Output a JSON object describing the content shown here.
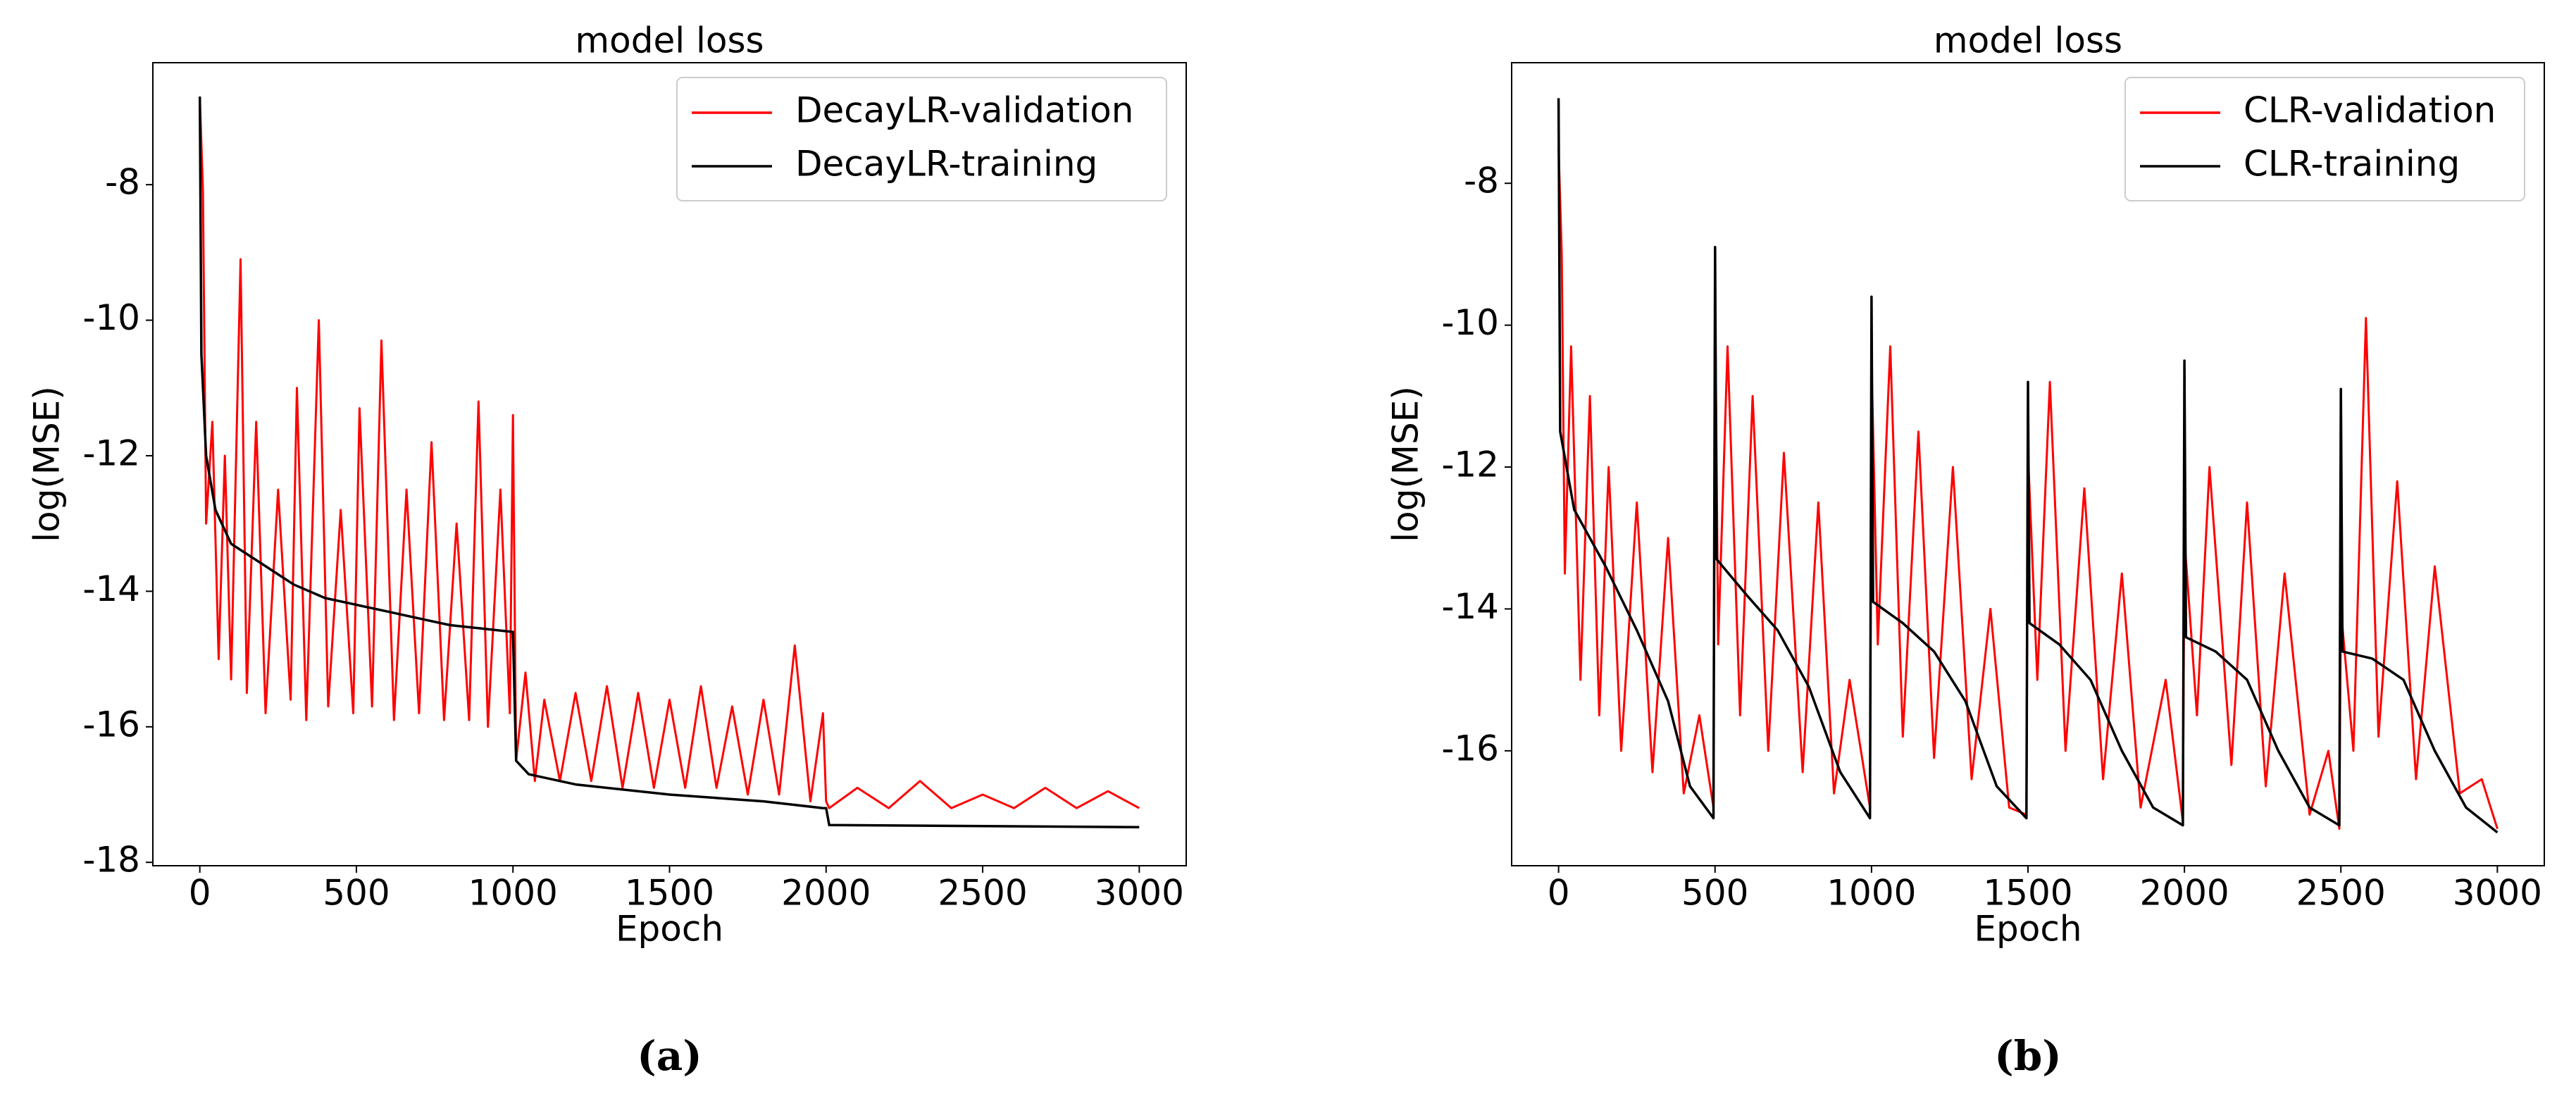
{
  "chart_data": [
    {
      "type": "line",
      "title": "model loss",
      "xlabel": "Epoch",
      "ylabel": "log(MSE)",
      "label": "(a)",
      "xlim": [
        -150,
        3150
      ],
      "ylim": [
        -18.05,
        -6.2
      ],
      "xticks": [
        0,
        500,
        1000,
        1500,
        2000,
        2500,
        3000
      ],
      "yticks": [
        -18,
        -16,
        -14,
        -12,
        -10,
        -8
      ],
      "legend": "upper right",
      "series": [
        {
          "name": "DecayLR-validation",
          "color": "#ff0000",
          "x": [
            0,
            10,
            20,
            40,
            60,
            80,
            100,
            130,
            150,
            180,
            210,
            250,
            290,
            310,
            340,
            380,
            410,
            450,
            490,
            510,
            550,
            580,
            620,
            660,
            700,
            740,
            780,
            820,
            860,
            890,
            920,
            960,
            990,
            1000,
            1010,
            1040,
            1070,
            1100,
            1150,
            1200,
            1250,
            1300,
            1350,
            1400,
            1450,
            1500,
            1550,
            1600,
            1650,
            1700,
            1750,
            1800,
            1850,
            1900,
            1950,
            1990,
            2000,
            2010,
            2100,
            2200,
            2300,
            2400,
            2500,
            2600,
            2700,
            2800,
            2900,
            3000
          ],
          "values": [
            -6.7,
            -8.1,
            -13,
            -11.5,
            -15,
            -12,
            -15.3,
            -9.1,
            -15.5,
            -11.5,
            -15.8,
            -12.5,
            -15.6,
            -11,
            -15.9,
            -10,
            -15.7,
            -12.8,
            -15.8,
            -11.3,
            -15.7,
            -10.3,
            -15.9,
            -12.5,
            -15.8,
            -11.8,
            -15.9,
            -13,
            -15.9,
            -11.2,
            -16,
            -12.5,
            -15.8,
            -11.4,
            -16.5,
            -15.2,
            -16.8,
            -15.6,
            -16.8,
            -15.5,
            -16.8,
            -15.4,
            -16.9,
            -15.5,
            -16.9,
            -15.6,
            -16.9,
            -15.4,
            -16.9,
            -15.7,
            -17,
            -15.6,
            -17,
            -14.8,
            -17.1,
            -15.8,
            -17.1,
            -17.2,
            -16.9,
            -17.2,
            -16.8,
            -17.2,
            -17,
            -17.2,
            -16.9,
            -17.2,
            -16.95,
            -17.2
          ]
        },
        {
          "name": "DecayLR-training",
          "color": "#000000",
          "x": [
            0,
            5,
            20,
            50,
            100,
            200,
            300,
            400,
            500,
            600,
            700,
            800,
            900,
            1000,
            1010,
            1050,
            1200,
            1500,
            1800,
            1990,
            2000,
            2010,
            3000
          ],
          "values": [
            -6.7,
            -10.5,
            -12,
            -12.8,
            -13.3,
            -13.6,
            -13.9,
            -14.1,
            -14.2,
            -14.3,
            -14.4,
            -14.5,
            -14.55,
            -14.6,
            -16.5,
            -16.7,
            -16.85,
            -17,
            -17.1,
            -17.2,
            -17.2,
            -17.45,
            -17.48
          ]
        }
      ]
    },
    {
      "type": "line",
      "title": "model loss",
      "xlabel": "Epoch",
      "ylabel": "log(MSE)",
      "label": "(b)",
      "xlim": [
        -150,
        3150
      ],
      "ylim": [
        -17.62,
        -6.3
      ],
      "xticks": [
        0,
        500,
        1000,
        1500,
        2000,
        2500,
        3000
      ],
      "yticks": [
        -16,
        -14,
        -12,
        -10,
        -8
      ],
      "legend": "upper right",
      "series": [
        {
          "name": "CLR-validation",
          "color": "#ff0000",
          "x": [
            0,
            10,
            20,
            40,
            70,
            100,
            130,
            160,
            200,
            250,
            300,
            350,
            400,
            450,
            495,
            500,
            510,
            540,
            580,
            620,
            670,
            720,
            780,
            830,
            880,
            930,
            995,
            1000,
            1020,
            1060,
            1100,
            1150,
            1200,
            1260,
            1320,
            1380,
            1440,
            1495,
            1500,
            1530,
            1570,
            1620,
            1680,
            1740,
            1800,
            1860,
            1940,
            1995,
            2000,
            2040,
            2080,
            2150,
            2200,
            2260,
            2320,
            2400,
            2460,
            2495,
            2500,
            2540,
            2580,
            2620,
            2680,
            2740,
            2800,
            2880,
            2950,
            3000
          ],
          "values": [
            -7.5,
            -9,
            -13.5,
            -10.3,
            -15,
            -11,
            -15.5,
            -12,
            -16,
            -12.5,
            -16.3,
            -13,
            -16.6,
            -15.5,
            -16.8,
            -9.5,
            -14.5,
            -10.3,
            -15.5,
            -11,
            -16,
            -11.8,
            -16.3,
            -12.5,
            -16.6,
            -15,
            -16.8,
            -10.5,
            -14.5,
            -10.3,
            -15.8,
            -11.5,
            -16.1,
            -12,
            -16.4,
            -14,
            -16.8,
            -16.9,
            -11.8,
            -15,
            -10.8,
            -16,
            -12.3,
            -16.4,
            -13.5,
            -16.8,
            -15,
            -17,
            -13,
            -15.5,
            -12,
            -16.2,
            -12.5,
            -16.5,
            -13.5,
            -16.9,
            -16,
            -17.1,
            -14,
            -16,
            -9.9,
            -15.8,
            -12.2,
            -16.4,
            -13.4,
            -16.6,
            -16.4,
            -17.1
          ]
        },
        {
          "name": "CLR-training",
          "color": "#000000",
          "x": [
            0,
            5,
            50,
            150,
            250,
            350,
            420,
            495,
            500,
            505,
            600,
            700,
            800,
            900,
            995,
            1000,
            1005,
            1100,
            1200,
            1300,
            1400,
            1495,
            1500,
            1505,
            1600,
            1700,
            1800,
            1900,
            1995,
            2000,
            2005,
            2100,
            2200,
            2300,
            2400,
            2495,
            2500,
            2505,
            2600,
            2700,
            2800,
            2900,
            3000
          ],
          "values": [
            -6.8,
            -11.5,
            -12.6,
            -13.4,
            -14.3,
            -15.3,
            -16.5,
            -16.95,
            -8.9,
            -13.3,
            -13.8,
            -14.3,
            -15.1,
            -16.3,
            -16.95,
            -9.6,
            -13.9,
            -14.2,
            -14.6,
            -15.3,
            -16.5,
            -16.95,
            -10.8,
            -14.2,
            -14.5,
            -15,
            -16,
            -16.8,
            -17.05,
            -10.5,
            -14.4,
            -14.6,
            -15,
            -16,
            -16.8,
            -17.05,
            -10.9,
            -14.6,
            -14.7,
            -15,
            -16,
            -16.8,
            -17.15
          ]
        }
      ]
    }
  ]
}
